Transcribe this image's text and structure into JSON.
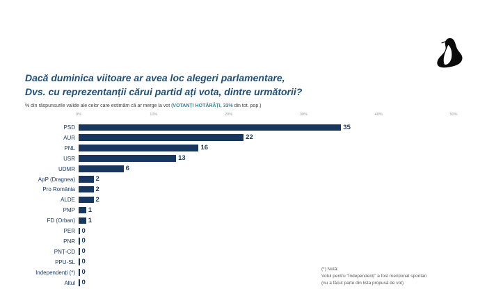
{
  "title": {
    "line1": "Dacă duminica viitoare ar avea loc alegeri parlamentare,",
    "line2": "Dvs. cu reprezentanții cărui partid ați vota, dintre următorii?"
  },
  "subtitle": {
    "pre": "% din răspunsurile valide ale celor care estimăm că ar merge la vot ",
    "highlight": "(VOTANȚI HOTĂRÂȚI, 33%",
    "post": " din tot. pop.)"
  },
  "note": {
    "line1": "(*) Notă:",
    "line2": "Votul pentru “Independenți” a fost menționat spontan",
    "line3": "(nu a făcut parte din lista propusă de vot)"
  },
  "colors": {
    "bar": "#17375E",
    "title": "#1F4E79",
    "subtitle_highlight": "#31859C",
    "axis_ticks": "#9A9A9A"
  },
  "logo": {
    "name": "penguin-logo"
  },
  "chart_data": {
    "type": "bar",
    "orientation": "horizontal",
    "title": "Dacă duminica viitoare ar avea loc alegeri parlamentare, Dvs. cu reprezentanții cărui partid ați vota, dintre următorii?",
    "subtitle": "% din răspunsurile valide ale celor care estimăm că ar merge la vot (VOTANȚI HOTĂRÂȚI, 33% din tot. pop.)",
    "categories": [
      "PSD",
      "AUR",
      "PNL",
      "USR",
      "UDMR",
      "ApP (Dragnea)",
      "Pro România",
      "ALDE",
      "PMP",
      "FD (Orban)",
      "PER",
      "PNR",
      "PNȚ-CD",
      "PPU-SL",
      "Independenți (*)",
      "Altul"
    ],
    "values": [
      35,
      22,
      16,
      13,
      6,
      2,
      2,
      2,
      1,
      1,
      0,
      0,
      0,
      0,
      0,
      0
    ],
    "x_ticks": [
      "0%",
      "10%",
      "20%",
      "30%",
      "40%",
      "50%"
    ],
    "xlim": [
      0,
      50
    ],
    "grid": false,
    "value_labels": true,
    "legend": "none"
  }
}
